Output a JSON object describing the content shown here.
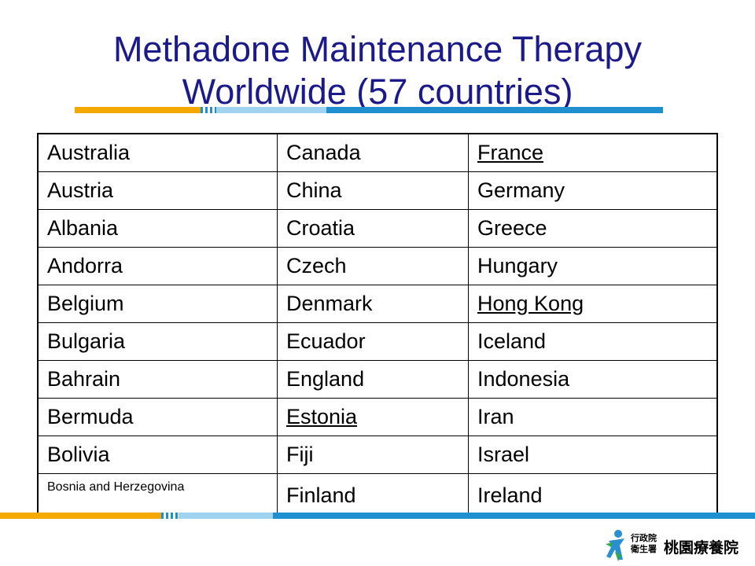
{
  "title": {
    "line1": "Methadone Maintenance Therapy",
    "line2": "Worldwide (57 countries)"
  },
  "table": {
    "rows": [
      [
        "Australia",
        "Canada",
        "France"
      ],
      [
        "Austria",
        "China",
        "Germany"
      ],
      [
        "Albania",
        "Croatia",
        "Greece"
      ],
      [
        "Andorra",
        "Czech",
        "Hungary"
      ],
      [
        "Belgium",
        "Denmark",
        "Hong Kong"
      ],
      [
        "Bulgaria",
        "Ecuador",
        "Iceland"
      ],
      [
        "Bahrain",
        "England",
        "Indonesia"
      ],
      [
        "Bermuda",
        "Estonia",
        "Iran"
      ],
      [
        "Bolivia",
        "Fiji",
        "Israel"
      ],
      [
        "Bosnia and Herzegovina",
        "Finland",
        "Ireland"
      ]
    ],
    "underlined": [
      "France",
      "Hong Kong",
      "Estonia"
    ]
  },
  "logo": {
    "small_line1": "行政院",
    "small_line2": "衛生署",
    "name": "桃園療養院"
  },
  "colors": {
    "title": "#1a1a8c",
    "stripe_orange": "#f5a800",
    "stripe_blue": "#1f8fcf",
    "stripe_light": "#9fd3ef"
  }
}
